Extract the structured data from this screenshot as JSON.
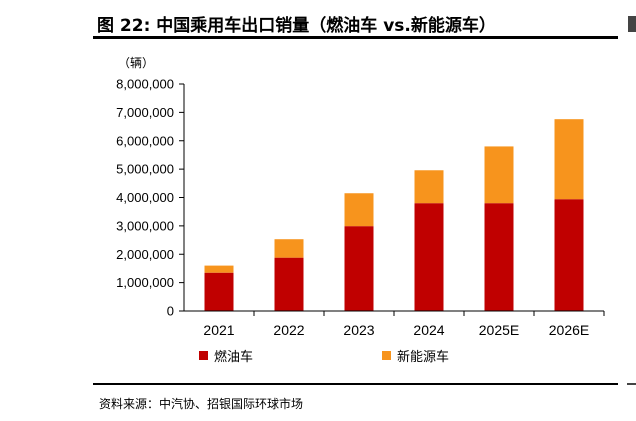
{
  "header": {
    "title": "图 22: 中国乘用车出口销量（燃油车 vs.新能源车）",
    "unit": "（辆）"
  },
  "footer": {
    "source": "资料来源：中汽协、招银国际环球市场"
  },
  "chart_data": {
    "type": "bar",
    "stacked": true,
    "categories": [
      "2021",
      "2022",
      "2023",
      "2024",
      "2025E",
      "2026E"
    ],
    "series": [
      {
        "name": "燃油车",
        "color": "#C00000",
        "values": [
          1350000,
          1880000,
          2990000,
          3800000,
          3800000,
          3940000
        ]
      },
      {
        "name": "新能源车",
        "color": "#F7941D",
        "values": [
          250000,
          650000,
          1160000,
          1160000,
          2000000,
          2820000
        ]
      }
    ],
    "ylim": [
      0,
      8000000
    ],
    "yticks": [
      "0",
      "1,000,000",
      "2,000,000",
      "3,000,000",
      "4,000,000",
      "5,000,000",
      "6,000,000",
      "7,000,000",
      "8,000,000"
    ],
    "grid": false,
    "legend_position": "bottom"
  }
}
